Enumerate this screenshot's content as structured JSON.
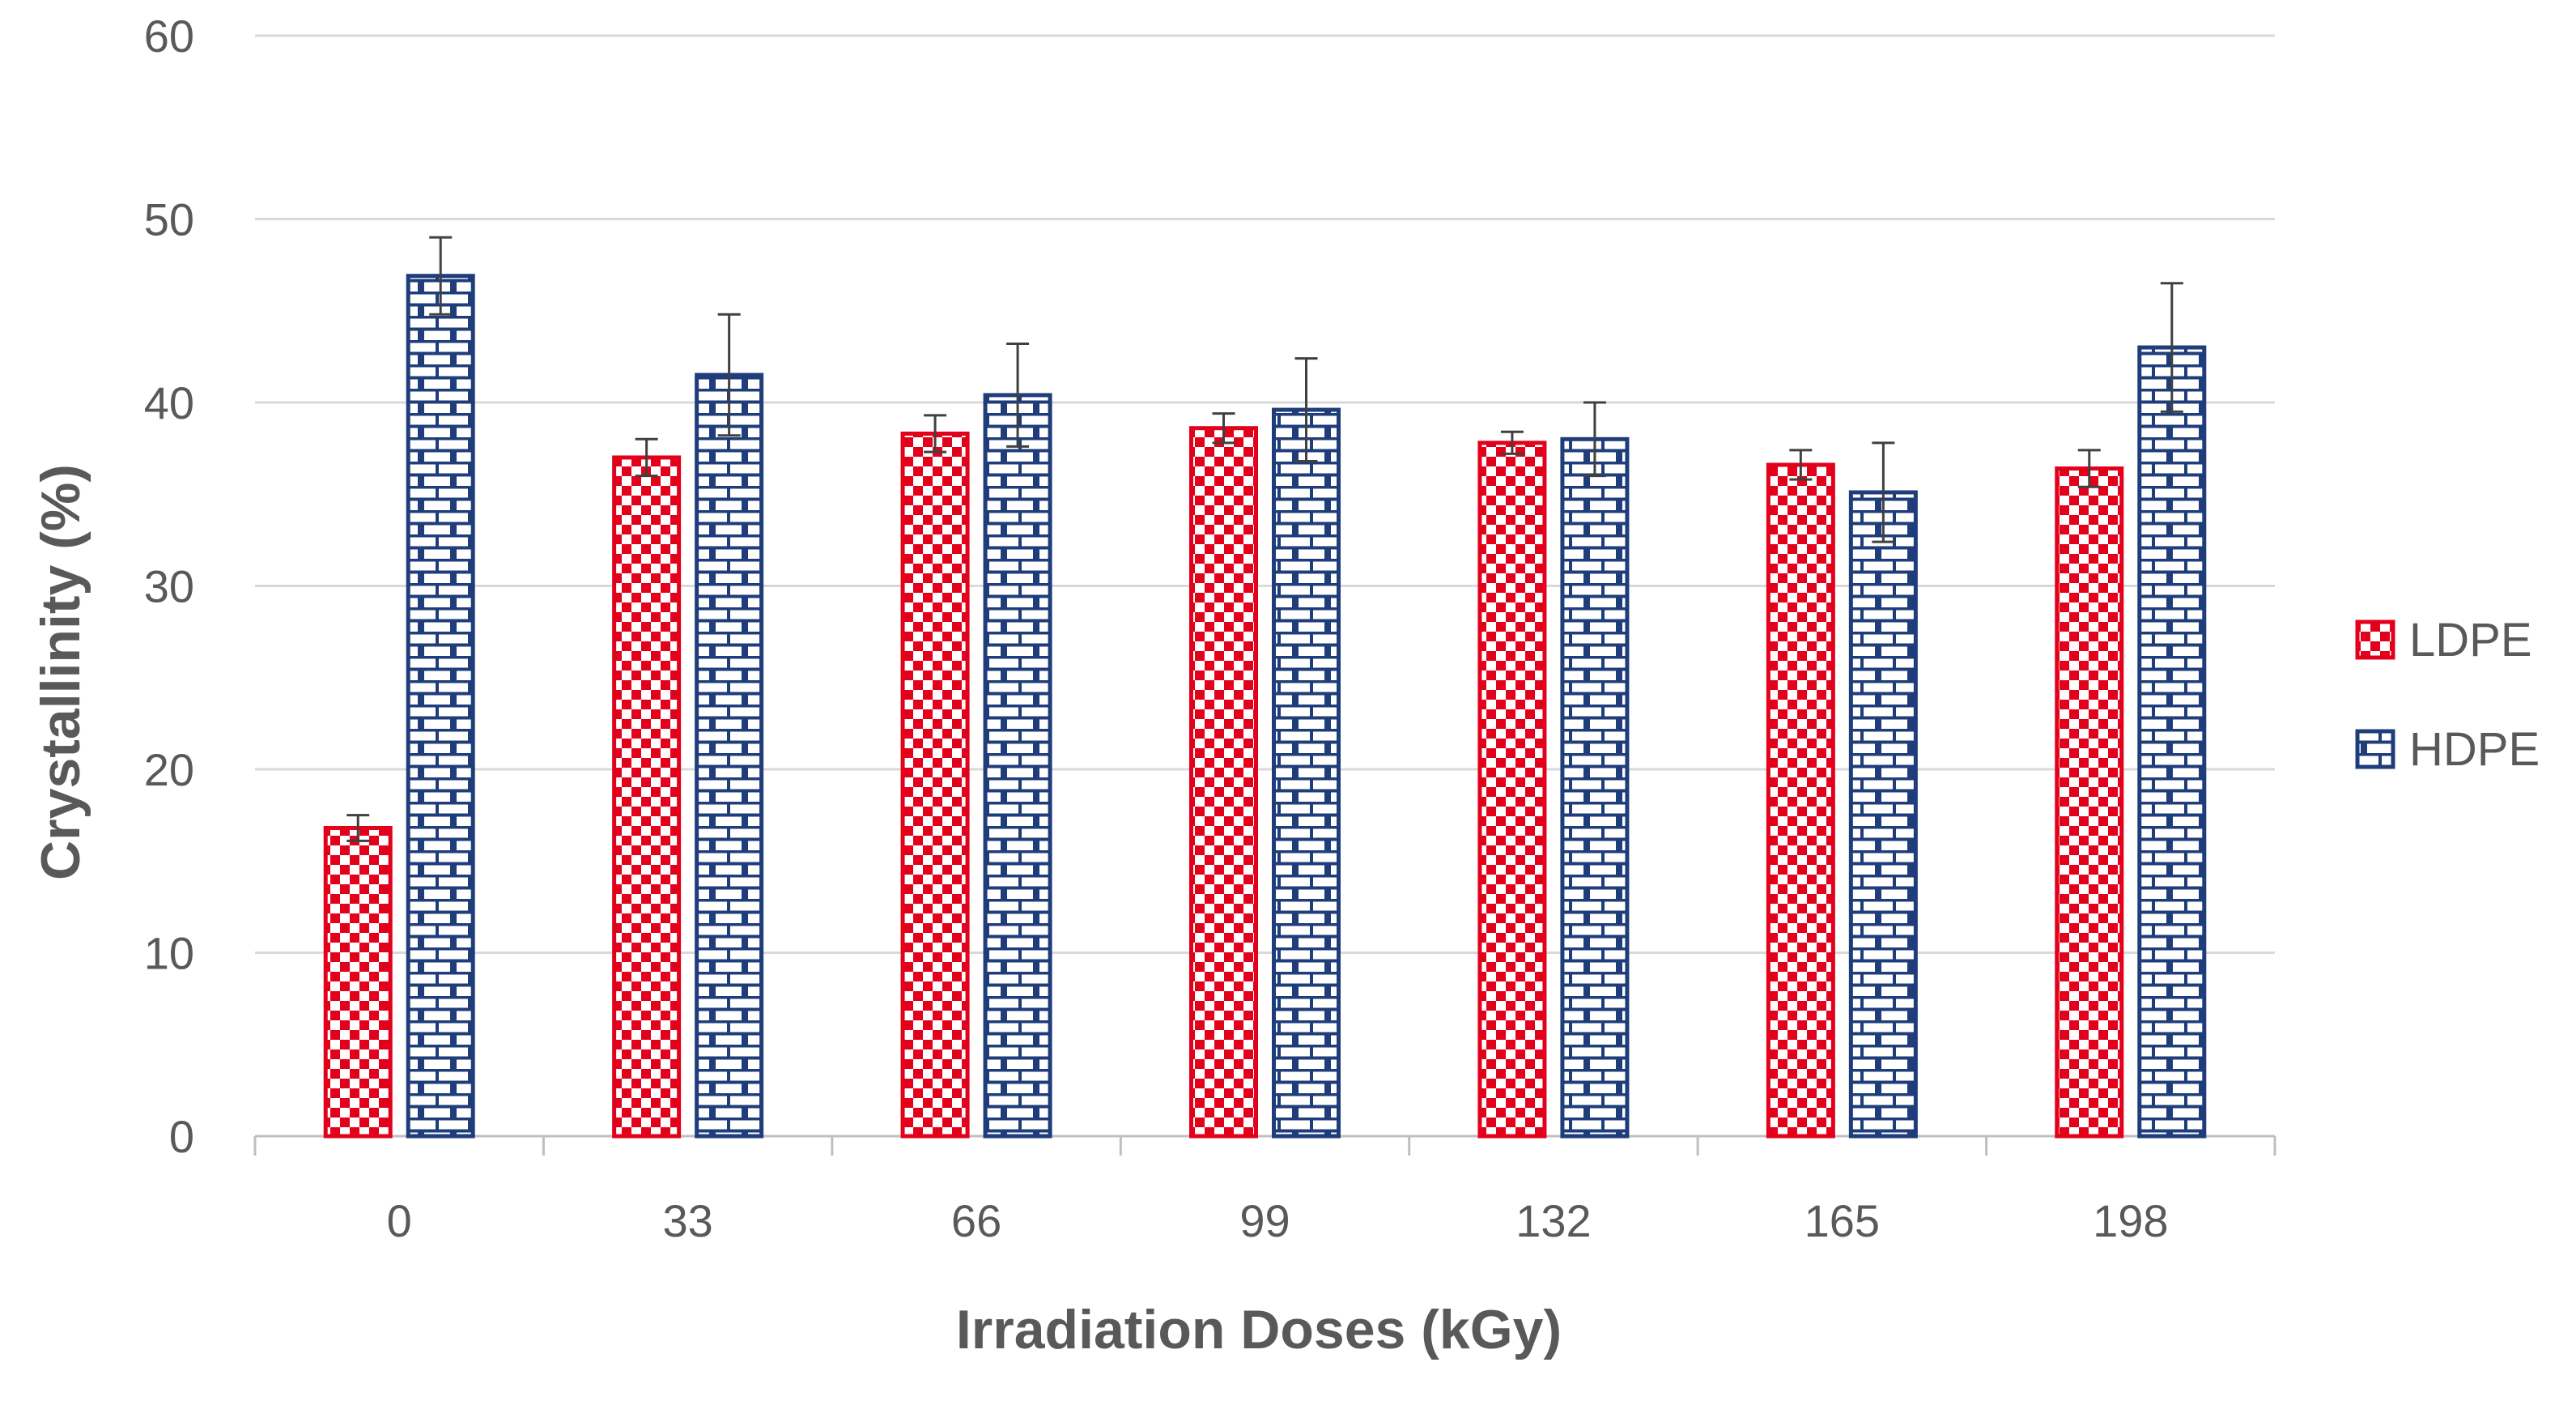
{
  "chart_data": {
    "type": "bar",
    "title": "",
    "xlabel": "Irradiation Doses (kGy)",
    "ylabel": "Crystallinity (%)",
    "categories": [
      "0",
      "33",
      "66",
      "99",
      "132",
      "165",
      "198"
    ],
    "ylim": [
      0,
      60
    ],
    "yticks": [
      "0",
      "10",
      "20",
      "30",
      "40",
      "50",
      "60"
    ],
    "grid": true,
    "legend_position": "right",
    "series": [
      {
        "name": "LDPE",
        "color": "#e3001b",
        "pattern": "checkerboard",
        "values": [
          16.8,
          37.0,
          38.3,
          38.6,
          37.8,
          36.6,
          36.4
        ],
        "errors": [
          0.7,
          1.0,
          1.0,
          0.8,
          0.6,
          0.8,
          1.0
        ]
      },
      {
        "name": "HDPE",
        "color": "#1f3d7a",
        "pattern": "brick",
        "values": [
          46.9,
          41.5,
          40.4,
          39.6,
          38.0,
          35.1,
          43.0
        ],
        "errors": [
          2.1,
          3.3,
          2.8,
          2.8,
          2.0,
          2.7,
          3.5
        ]
      }
    ]
  }
}
